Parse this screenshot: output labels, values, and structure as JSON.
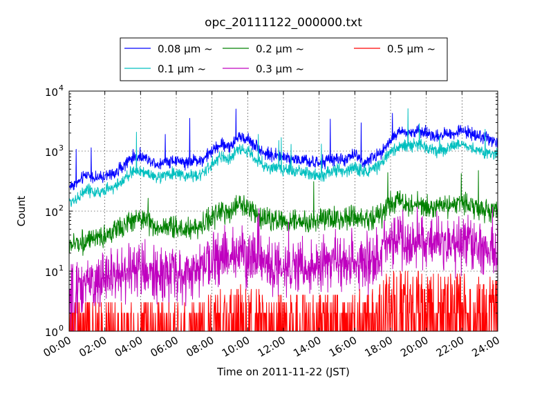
{
  "chart_data": {
    "type": "line",
    "title": "opc_20111122_000000.txt",
    "xlabel": "Time on 2011-11-22 (JST)",
    "ylabel": "Count",
    "yscale": "log",
    "ylim": [
      1,
      10000
    ],
    "xlim": [
      "00:00",
      "24:00"
    ],
    "grid": true,
    "legend_position": "top",
    "x_tick_labels": [
      "00:00",
      "02:00",
      "04:00",
      "06:00",
      "08:00",
      "10:00",
      "12:00",
      "14:00",
      "16:00",
      "18:00",
      "20:00",
      "22:00",
      "24:00"
    ],
    "y_ticks": [
      {
        "base": "10",
        "exp": "0",
        "value": 1
      },
      {
        "base": "10",
        "exp": "1",
        "value": 10
      },
      {
        "base": "10",
        "exp": "2",
        "value": 100
      },
      {
        "base": "10",
        "exp": "3",
        "value": 1000
      },
      {
        "base": "10",
        "exp": "4",
        "value": 10000
      }
    ],
    "x_hours": [
      0,
      0.5,
      1,
      1.5,
      2,
      2.5,
      3,
      3.5,
      4,
      4.5,
      5,
      5.5,
      6,
      6.5,
      7,
      7.5,
      8,
      8.5,
      9,
      9.5,
      10,
      10.5,
      11,
      11.5,
      12,
      12.5,
      13,
      13.5,
      14,
      14.5,
      15,
      15.5,
      16,
      16.5,
      17,
      17.5,
      18,
      18.5,
      19,
      19.5,
      20,
      20.5,
      21,
      21.5,
      22,
      22.5,
      23,
      23.5,
      24
    ],
    "series": [
      {
        "name": "0.08 μm ~",
        "color": "#0000ff",
        "noise": 0.05,
        "values": [
          260,
          300,
          420,
          350,
          380,
          420,
          560,
          780,
          820,
          720,
          600,
          680,
          700,
          650,
          700,
          720,
          1000,
          1300,
          1200,
          1700,
          1600,
          1200,
          900,
          850,
          800,
          750,
          700,
          650,
          620,
          700,
          750,
          700,
          900,
          650,
          750,
          1000,
          1500,
          2100,
          2000,
          2100,
          2000,
          1800,
          1900,
          2000,
          2200,
          2000,
          1800,
          1600,
          1400
        ]
      },
      {
        "name": "0.1 μm ~",
        "color": "#00bfbf",
        "noise": 0.05,
        "values": [
          140,
          170,
          230,
          200,
          220,
          250,
          320,
          450,
          470,
          420,
          360,
          400,
          420,
          380,
          400,
          420,
          600,
          800,
          750,
          1100,
          1000,
          700,
          550,
          520,
          500,
          470,
          450,
          420,
          400,
          430,
          480,
          450,
          550,
          450,
          500,
          600,
          1000,
          1200,
          1200,
          1300,
          1200,
          1000,
          1100,
          1200,
          1300,
          1100,
          1000,
          950,
          850
        ]
      },
      {
        "name": "0.2 μm ~",
        "color": "#008000",
        "noise": 0.09,
        "values": [
          26,
          30,
          32,
          30,
          40,
          45,
          55,
          70,
          80,
          65,
          50,
          55,
          55,
          50,
          55,
          60,
          80,
          100,
          90,
          130,
          120,
          90,
          75,
          72,
          70,
          68,
          65,
          60,
          70,
          70,
          75,
          70,
          80,
          70,
          75,
          90,
          140,
          150,
          120,
          130,
          120,
          110,
          120,
          130,
          140,
          120,
          110,
          100,
          95
        ]
      },
      {
        "name": "0.3 μm ~",
        "color": "#bf00bf",
        "noise": 0.22,
        "values": [
          4,
          5,
          6,
          6,
          7,
          8,
          9,
          10,
          11,
          10,
          9,
          9,
          9,
          9,
          10,
          11,
          14,
          16,
          15,
          22,
          20,
          15,
          12,
          12,
          11,
          12,
          12,
          11,
          12,
          13,
          14,
          13,
          16,
          14,
          15,
          20,
          35,
          35,
          30,
          32,
          28,
          27,
          28,
          30,
          30,
          27,
          25,
          24,
          22
        ]
      },
      {
        "name": "0.5 μm ~",
        "color": "#ff0000",
        "noise": 0.25,
        "values": [
          1,
          1,
          1,
          1,
          1,
          1,
          1,
          1,
          1,
          1,
          1,
          1,
          1,
          1,
          1,
          1,
          1.2,
          1.4,
          1.5,
          1.7,
          1.7,
          1.5,
          1.3,
          1.3,
          1.3,
          1.3,
          1.3,
          1.3,
          1.4,
          1.4,
          1.5,
          1.4,
          1.5,
          1.5,
          1.6,
          1.8,
          3.5,
          3.5,
          3,
          3,
          2.8,
          2.6,
          2.7,
          2.7,
          2.8,
          2.6,
          2.5,
          2.4,
          2.3
        ]
      }
    ]
  }
}
